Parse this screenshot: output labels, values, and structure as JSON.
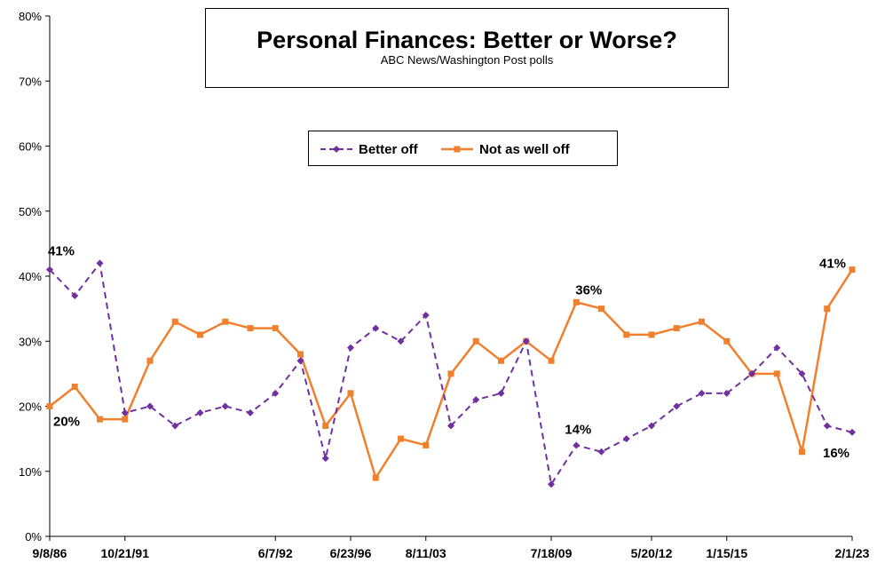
{
  "chart_data": {
    "type": "line",
    "title": "Personal Finances: Better or Worse?",
    "subtitle": "ABC News/Washington  Post polls",
    "xlabel": "",
    "ylabel": "",
    "ylim": [
      0,
      80
    ],
    "yticks": [
      "0%",
      "10%",
      "20%",
      "30%",
      "40%",
      "50%",
      "60%",
      "70%",
      "80%"
    ],
    "xtick_labels": [
      "9/8/86",
      "10/21/91",
      "6/7/92",
      "6/23/96",
      "8/11/03",
      "7/18/09",
      "5/20/12",
      "1/15/15",
      "2/1/23"
    ],
    "xtick_label_points": [
      0,
      3,
      9,
      12,
      15,
      20,
      24,
      27,
      32
    ],
    "grid": false,
    "legend_placement": "top-center",
    "series": [
      {
        "name": "Better off",
        "color": "#7030A0",
        "style": "dashed",
        "marker": "diamond",
        "values": [
          41,
          37,
          42,
          19,
          20,
          17,
          19,
          20,
          19,
          22,
          27,
          12,
          29,
          32,
          30,
          34,
          17,
          21,
          22,
          30,
          8,
          14,
          13,
          15,
          17,
          20,
          22,
          22,
          25,
          29,
          25,
          17,
          16
        ]
      },
      {
        "name": "Not as well off",
        "color": "#F0802E",
        "style": "solid",
        "marker": "square",
        "values": [
          20,
          23,
          18,
          18,
          27,
          33,
          31,
          33,
          32,
          32,
          28,
          17,
          22,
          9,
          15,
          14,
          25,
          30,
          27,
          30,
          27,
          36,
          35,
          31,
          31,
          32,
          33,
          30,
          25,
          25,
          13,
          35,
          41
        ]
      }
    ],
    "annotations": [
      {
        "series": 0,
        "point": 0,
        "text": "41%"
      },
      {
        "series": 1,
        "point": 0,
        "text": "20%"
      },
      {
        "series": 0,
        "point": 21,
        "text": "14%"
      },
      {
        "series": 1,
        "point": 21,
        "text": "36%"
      },
      {
        "series": 1,
        "point": 32,
        "text": "41%"
      },
      {
        "series": 0,
        "point": 32,
        "text": "16%"
      }
    ]
  }
}
